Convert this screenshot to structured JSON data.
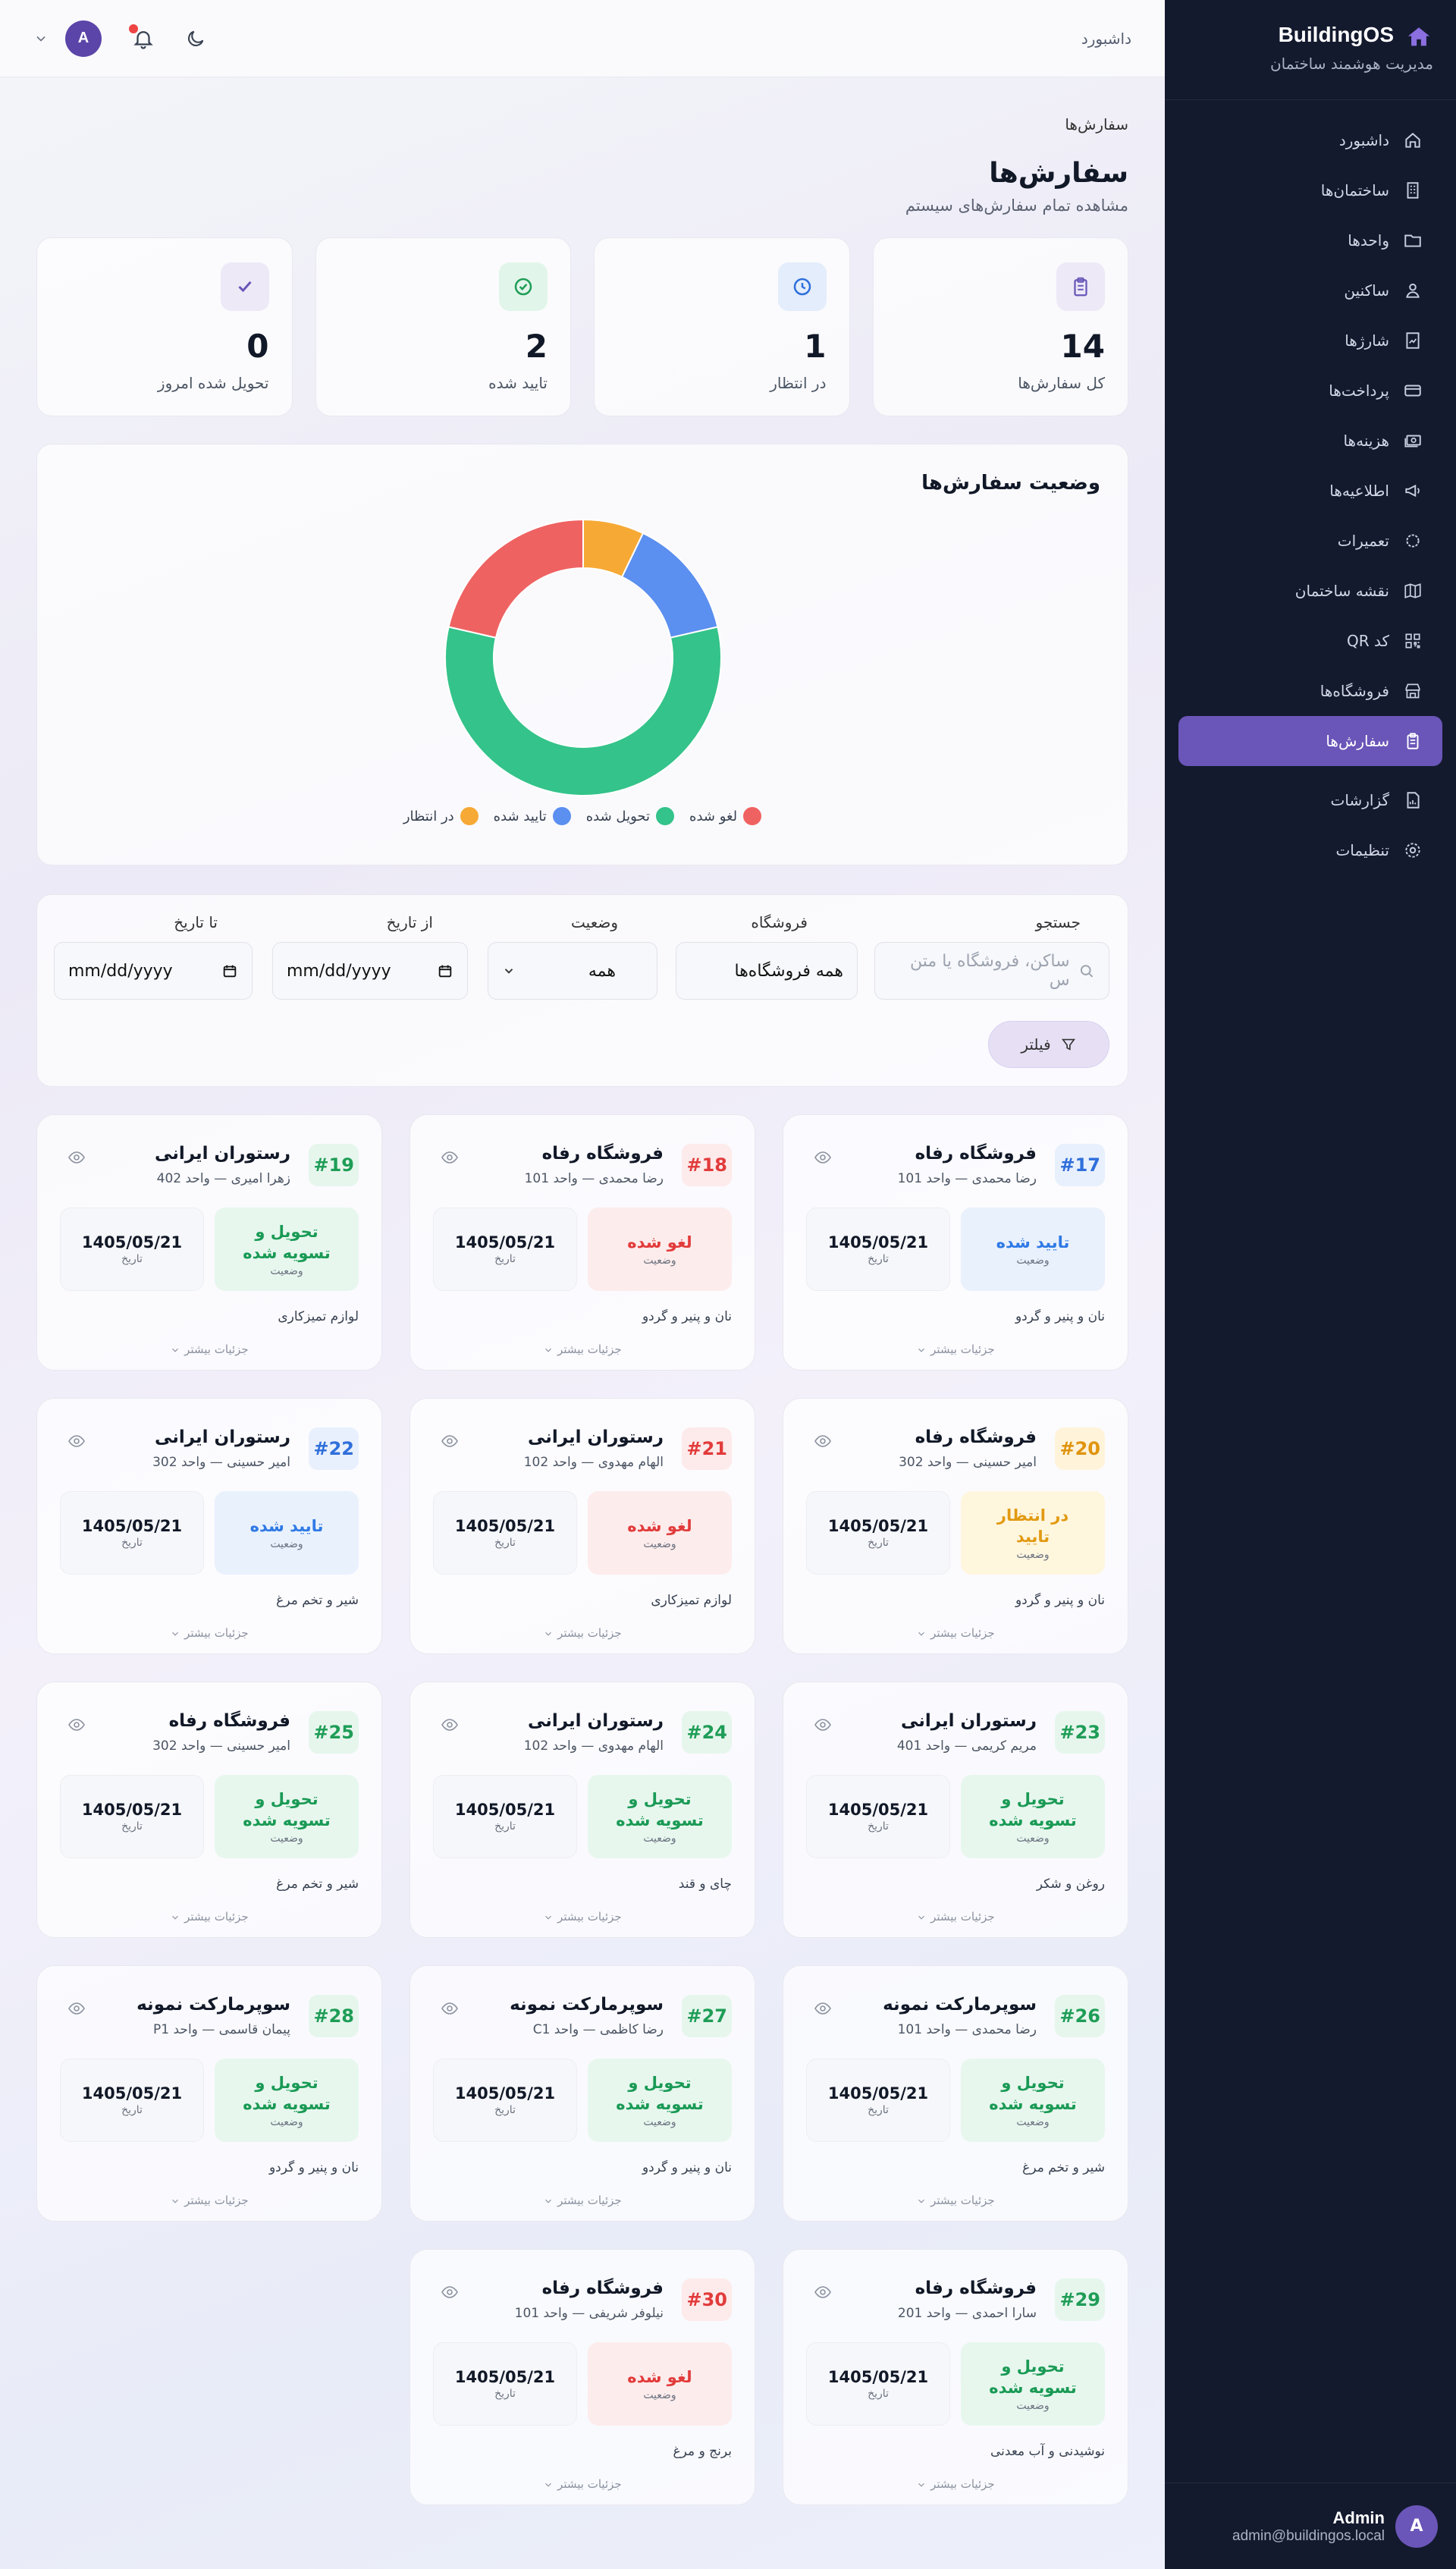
{
  "sidebar": {
    "brand_name": "BuildingOS",
    "brand_sub": "مدیریت هوشمند ساختمان",
    "items": [
      {
        "label": "داشبورد",
        "icon": "home-icon"
      },
      {
        "label": "ساختمان‌ها",
        "icon": "building-icon"
      },
      {
        "label": "واحدها",
        "icon": "folder-icon"
      },
      {
        "label": "ساکنین",
        "icon": "users-icon"
      },
      {
        "label": "شارژها",
        "icon": "charge-icon"
      },
      {
        "label": "پرداخت‌ها",
        "icon": "card-icon"
      },
      {
        "label": "هزینه‌ها",
        "icon": "cash-icon"
      },
      {
        "label": "اطلاعیه‌ها",
        "icon": "megaphone-icon"
      },
      {
        "label": "تعمیرات",
        "icon": "gear-icon"
      },
      {
        "label": "نقشه ساختمان",
        "icon": "map-icon"
      },
      {
        "label": "کد QR",
        "icon": "qr-icon"
      },
      {
        "label": "فروشگاه‌ها",
        "icon": "store-icon"
      },
      {
        "label": "سفارش‌ها",
        "icon": "clipboard-icon",
        "active": true
      },
      {
        "label": "گزارشات",
        "icon": "report-icon"
      },
      {
        "label": "تنظیمات",
        "icon": "settings-icon"
      }
    ],
    "user": {
      "avatar": "A",
      "name": "Admin",
      "email": "admin@buildingos.local"
    }
  },
  "header": {
    "breadcrumb": "داشبورد",
    "avatar": "A"
  },
  "page": {
    "breadcrumb": "سفارش‌ها",
    "title": "سفارش‌ها",
    "subtitle": "مشاهده تمام سفارش‌های سیستم"
  },
  "stats": [
    {
      "value": "14",
      "label": "کل سفارش‌ها",
      "icon": "clipboard-icon",
      "bg": "#ede9f7",
      "fg": "#6a55b8"
    },
    {
      "value": "1",
      "label": "در انتظار",
      "icon": "clock-icon",
      "bg": "#e3edfb",
      "fg": "#2f6fdb"
    },
    {
      "value": "2",
      "label": "تایید شده",
      "icon": "check-circle-icon",
      "bg": "#e2f5ea",
      "fg": "#1f9d57"
    },
    {
      "value": "0",
      "label": "تحویل شده امروز",
      "icon": "check-icon",
      "bg": "#ede9f7",
      "fg": "#6a55b8"
    }
  ],
  "chart": {
    "title": "وضعیت سفارش‌ها",
    "legend": [
      {
        "label": "لغو شده",
        "color": "#ef6262"
      },
      {
        "label": "تحویل شده",
        "color": "#34c38a"
      },
      {
        "label": "تایید شده",
        "color": "#5b8ff0"
      },
      {
        "label": "در انتظار",
        "color": "#f6a935"
      }
    ]
  },
  "chart_data": {
    "type": "pie",
    "donut": true,
    "title": "وضعیت سفارش‌ها",
    "categories": [
      "در انتظار",
      "تایید شده",
      "تحویل شده",
      "لغو شده"
    ],
    "values": [
      1,
      2,
      8,
      3
    ],
    "colors": [
      "#f6a935",
      "#5b8ff0",
      "#34c38a",
      "#ef6262"
    ],
    "legend_position": "bottom"
  },
  "filters": {
    "search_label": "جستجو",
    "search_placeholder": "ساکن، فروشگاه یا متن س",
    "store_label": "فروشگاه",
    "store_value": "همه فروشگاه‌ها",
    "status_label": "وضعیت",
    "status_value": "همه",
    "from_label": "از تاریخ",
    "from_value": "mm/dd/yyyy",
    "to_label": "تا تاریخ",
    "to_value": "mm/dd/yyyy",
    "filter_button": "فیلتر"
  },
  "status_sub": "وضعیت",
  "date_sub": "تاریخ",
  "more_label": "جزئیات بیشتر",
  "orders": [
    {
      "num": "#17",
      "shop": "فروشگاه رفاه",
      "meta": "رضا محمدی — واحد 101",
      "status": "تایید شده",
      "kind": "confirm",
      "date": "1405/05/21",
      "items": "نان و پنیر و گردو"
    },
    {
      "num": "#18",
      "shop": "فروشگاه رفاه",
      "meta": "رضا محمدی — واحد 101",
      "status": "لغو شده",
      "kind": "cancel",
      "date": "1405/05/21",
      "items": "نان و پنیر و گردو"
    },
    {
      "num": "#19",
      "shop": "رستوران ایرانی",
      "meta": "زهرا امیری — واحد 402",
      "status": "تحویل و تسویه شده",
      "kind": "delivered",
      "date": "1405/05/21",
      "items": "لوازم تمیزکاری"
    },
    {
      "num": "#20",
      "shop": "فروشگاه رفاه",
      "meta": "امیر حسینی — واحد 302",
      "status": "در انتظار تایید",
      "kind": "pending",
      "date": "1405/05/21",
      "items": "نان و پنیر و گردو"
    },
    {
      "num": "#21",
      "shop": "رستوران ایرانی",
      "meta": "الهام مهدوی — واحد 102",
      "status": "لغو شده",
      "kind": "cancel",
      "date": "1405/05/21",
      "items": "لوازم تمیزکاری"
    },
    {
      "num": "#22",
      "shop": "رستوران ایرانی",
      "meta": "امیر حسینی — واحد 302",
      "status": "تایید شده",
      "kind": "confirm",
      "date": "1405/05/21",
      "items": "شیر و تخم مرغ"
    },
    {
      "num": "#23",
      "shop": "رستوران ایرانی",
      "meta": "مریم کریمی — واحد 401",
      "status": "تحویل و تسویه شده",
      "kind": "delivered",
      "date": "1405/05/21",
      "items": "روغن و شکر"
    },
    {
      "num": "#24",
      "shop": "رستوران ایرانی",
      "meta": "الهام مهدوی — واحد 102",
      "status": "تحویل و تسویه شده",
      "kind": "delivered",
      "date": "1405/05/21",
      "items": "چای و قند"
    },
    {
      "num": "#25",
      "shop": "فروشگاه رفاه",
      "meta": "امیر حسینی — واحد 302",
      "status": "تحویل و تسویه شده",
      "kind": "delivered",
      "date": "1405/05/21",
      "items": "شیر و تخم مرغ"
    },
    {
      "num": "#26",
      "shop": "سوپرمارکت نمونه",
      "meta": "رضا محمدی — واحد 101",
      "status": "تحویل و تسویه شده",
      "kind": "delivered",
      "date": "1405/05/21",
      "items": "شیر و تخم مرغ"
    },
    {
      "num": "#27",
      "shop": "سوپرمارکت نمونه",
      "meta": "رضا کاظمی — واحد C1",
      "status": "تحویل و تسویه شده",
      "kind": "delivered",
      "date": "1405/05/21",
      "items": "نان و پنیر و گردو"
    },
    {
      "num": "#28",
      "shop": "سوپرمارکت نمونه",
      "meta": "پیمان قاسمی — واحد P1",
      "status": "تحویل و تسویه شده",
      "kind": "delivered",
      "date": "1405/05/21",
      "items": "نان و پنیر و گردو"
    },
    {
      "num": "#29",
      "shop": "فروشگاه رفاه",
      "meta": "سارا احمدی — واحد 201",
      "status": "تحویل و تسویه شده",
      "kind": "delivered",
      "date": "1405/05/21",
      "items": "نوشیدنی و آب معدنی"
    },
    {
      "num": "#30",
      "shop": "فروشگاه رفاه",
      "meta": "نیلوفر شریفی — واحد 101",
      "status": "لغو شده",
      "kind": "cancel",
      "date": "1405/05/21",
      "items": "برنج و مرغ"
    }
  ]
}
